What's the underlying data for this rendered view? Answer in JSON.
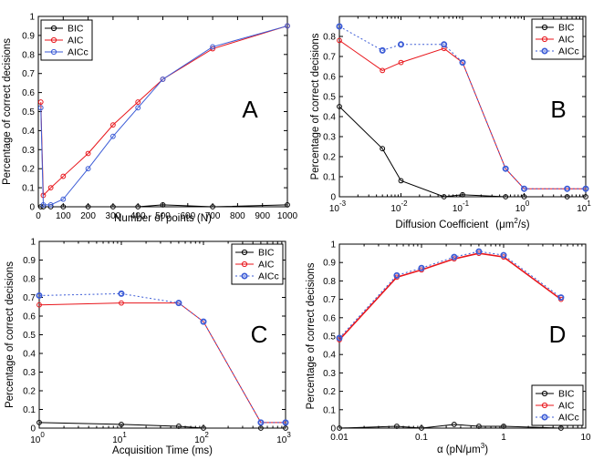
{
  "chart_data": [
    {
      "id": "A",
      "type": "line",
      "panel_letter": "A",
      "xscale": "linear",
      "xlim": [
        0,
        1000
      ],
      "ylim": [
        0,
        1
      ],
      "xticks": [
        0,
        100,
        200,
        300,
        400,
        500,
        600,
        700,
        800,
        900,
        1000
      ],
      "xtick_labels": [
        "0",
        "100",
        "200",
        "300",
        "400",
        "500",
        "600",
        "700",
        "800",
        "900",
        "1000"
      ],
      "yticks": [
        0,
        0.1,
        0.2,
        0.3,
        0.4,
        0.5,
        0.6,
        0.7,
        0.8,
        0.9,
        1
      ],
      "ytick_labels": [
        "0",
        "0.1",
        "0.2",
        "0.3",
        "0.4",
        "0.5",
        "0.6",
        "0.7",
        "0.8",
        "0.9",
        "1"
      ],
      "xlabel": "Number of points (N)",
      "ylabel": "Percentage of correct decisions",
      "legend_position": "top-left",
      "series": [
        {
          "name": "BIC",
          "color": "#000000",
          "dash": "solid",
          "x": [
            10,
            20,
            50,
            100,
            200,
            300,
            400,
            500,
            700,
            1000
          ],
          "y": [
            0.0,
            0.0,
            0.0,
            0.0,
            0.0,
            0.0,
            0.0,
            0.01,
            0.0,
            0.01
          ]
        },
        {
          "name": "AIC",
          "color": "#e8151b",
          "dash": "solid",
          "x": [
            10,
            20,
            50,
            100,
            200,
            300,
            400,
            500,
            700,
            1000
          ],
          "y": [
            0.55,
            0.06,
            0.1,
            0.16,
            0.28,
            0.43,
            0.55,
            0.67,
            0.83,
            0.95
          ]
        },
        {
          "name": "AICc",
          "color": "#3b5bd6",
          "dash": "solid",
          "x": [
            10,
            20,
            50,
            100,
            200,
            300,
            400,
            500,
            700,
            1000
          ],
          "y": [
            0.52,
            0.01,
            0.01,
            0.04,
            0.2,
            0.37,
            0.52,
            0.67,
            0.84,
            0.95
          ]
        }
      ]
    },
    {
      "id": "B",
      "type": "line",
      "panel_letter": "B",
      "xscale": "log",
      "xlim": [
        0.001,
        10
      ],
      "ylim": [
        0,
        0.9
      ],
      "xticks": [
        0.001,
        0.01,
        0.1,
        1,
        10
      ],
      "xtick_labels": [
        [
          "10",
          "-3"
        ],
        [
          "10",
          "-2"
        ],
        [
          "10",
          "-1"
        ],
        [
          "10",
          "0"
        ],
        [
          "10",
          "1"
        ]
      ],
      "yticks": [
        0,
        0.1,
        0.2,
        0.3,
        0.4,
        0.5,
        0.6,
        0.7,
        0.8
      ],
      "ytick_labels": [
        "0",
        "0.1",
        "0.2",
        "0.3",
        "0.4",
        "0.5",
        "0.6",
        "0.7",
        "0.8"
      ],
      "xlabel": "Diffusion Coefficient",
      "xlabel_unit_pre": "(μm",
      "xlabel_unit_sup": "2",
      "xlabel_unit_post": "/s)",
      "ylabel": "Percentage of correct decisions",
      "legend_position": "top-right",
      "series": [
        {
          "name": "BIC",
          "color": "#000000",
          "dash": "solid",
          "x": [
            0.001,
            0.005,
            0.01,
            0.05,
            0.1,
            0.5,
            1,
            5,
            10
          ],
          "y": [
            0.45,
            0.24,
            0.08,
            0.0,
            0.01,
            0.0,
            0.0,
            0.0,
            0.0
          ]
        },
        {
          "name": "AIC",
          "color": "#e8151b",
          "dash": "solid",
          "x": [
            0.001,
            0.005,
            0.01,
            0.05,
            0.1,
            0.5,
            1,
            5,
            10
          ],
          "y": [
            0.78,
            0.63,
            0.67,
            0.74,
            0.67,
            0.14,
            0.04,
            0.04,
            0.04
          ]
        },
        {
          "name": "AICc",
          "color": "#3b5bd6",
          "dash": "dotted",
          "x": [
            0.001,
            0.005,
            0.01,
            0.05,
            0.1,
            0.5,
            1,
            5,
            10
          ],
          "y": [
            0.85,
            0.73,
            0.76,
            0.76,
            0.67,
            0.14,
            0.04,
            0.04,
            0.04
          ]
        }
      ]
    },
    {
      "id": "C",
      "type": "line",
      "panel_letter": "C",
      "xscale": "log",
      "xlim": [
        1,
        1000
      ],
      "ylim": [
        0,
        1
      ],
      "xticks": [
        1,
        10,
        100,
        1000
      ],
      "xtick_labels": [
        [
          "10",
          "0"
        ],
        [
          "10",
          "1"
        ],
        [
          "10",
          "2"
        ],
        [
          "10",
          "3"
        ]
      ],
      "yticks": [
        0,
        0.1,
        0.2,
        0.3,
        0.4,
        0.5,
        0.6,
        0.7,
        0.8,
        0.9,
        1
      ],
      "ytick_labels": [
        "0",
        "0.1",
        "0.2",
        "0.3",
        "0.4",
        "0.5",
        "0.6",
        "0.7",
        "0.8",
        "0.9",
        "1"
      ],
      "xlabel": "Acquisition Time (ms)",
      "ylabel": "Percentage of correct decisions",
      "legend_position": "top-right",
      "series": [
        {
          "name": "BIC",
          "color": "#000000",
          "dash": "solid",
          "x": [
            1,
            10,
            50,
            100,
            500,
            1000
          ],
          "y": [
            0.03,
            0.02,
            0.01,
            0.0,
            0.0,
            0.0
          ]
        },
        {
          "name": "AIC",
          "color": "#e8151b",
          "dash": "solid",
          "x": [
            1,
            10,
            50,
            100,
            500,
            1000
          ],
          "y": [
            0.66,
            0.67,
            0.67,
            0.57,
            0.03,
            0.03
          ]
        },
        {
          "name": "AICc",
          "color": "#3b5bd6",
          "dash": "dotted",
          "x": [
            1,
            10,
            50,
            100,
            500,
            1000
          ],
          "y": [
            0.71,
            0.72,
            0.67,
            0.57,
            0.03,
            0.03
          ]
        }
      ]
    },
    {
      "id": "D",
      "type": "line",
      "panel_letter": "D",
      "xscale": "log",
      "xlim": [
        0.01,
        10
      ],
      "ylim": [
        0,
        1
      ],
      "xticks": [
        0.01,
        0.1,
        1,
        10
      ],
      "xtick_labels": [
        "0.01",
        "0.1",
        "1",
        "10"
      ],
      "yticks": [
        0,
        0.1,
        0.2,
        0.3,
        0.4,
        0.5,
        0.6,
        0.7,
        0.8,
        0.9,
        1
      ],
      "ytick_labels": [
        "0",
        "0.1",
        "0.2",
        "0.3",
        "0.4",
        "0.5",
        "0.6",
        "0.7",
        "0.8",
        "0.9",
        "1"
      ],
      "xlabel": "α (pN/μm",
      "xlabel_sup": "3",
      "xlabel_post": ")",
      "ylabel": "Percentage of correct decisions",
      "legend_position": "bottom-right",
      "series": [
        {
          "name": "BIC",
          "color": "#000000",
          "dash": "solid",
          "x": [
            0.01,
            0.05,
            0.1,
            0.25,
            0.5,
            1,
            5
          ],
          "y": [
            0.0,
            0.01,
            0.0,
            0.02,
            0.01,
            0.01,
            0.0
          ]
        },
        {
          "name": "AIC",
          "color": "#e8151b",
          "dash": "solid",
          "x": [
            0.01,
            0.05,
            0.1,
            0.25,
            0.5,
            1,
            5
          ],
          "y": [
            0.48,
            0.82,
            0.86,
            0.92,
            0.95,
            0.93,
            0.7
          ]
        },
        {
          "name": "AICc",
          "color": "#3b5bd6",
          "dash": "dotted",
          "x": [
            0.01,
            0.05,
            0.1,
            0.25,
            0.5,
            1,
            5
          ],
          "y": [
            0.49,
            0.83,
            0.87,
            0.93,
            0.96,
            0.94,
            0.71
          ]
        }
      ]
    }
  ]
}
